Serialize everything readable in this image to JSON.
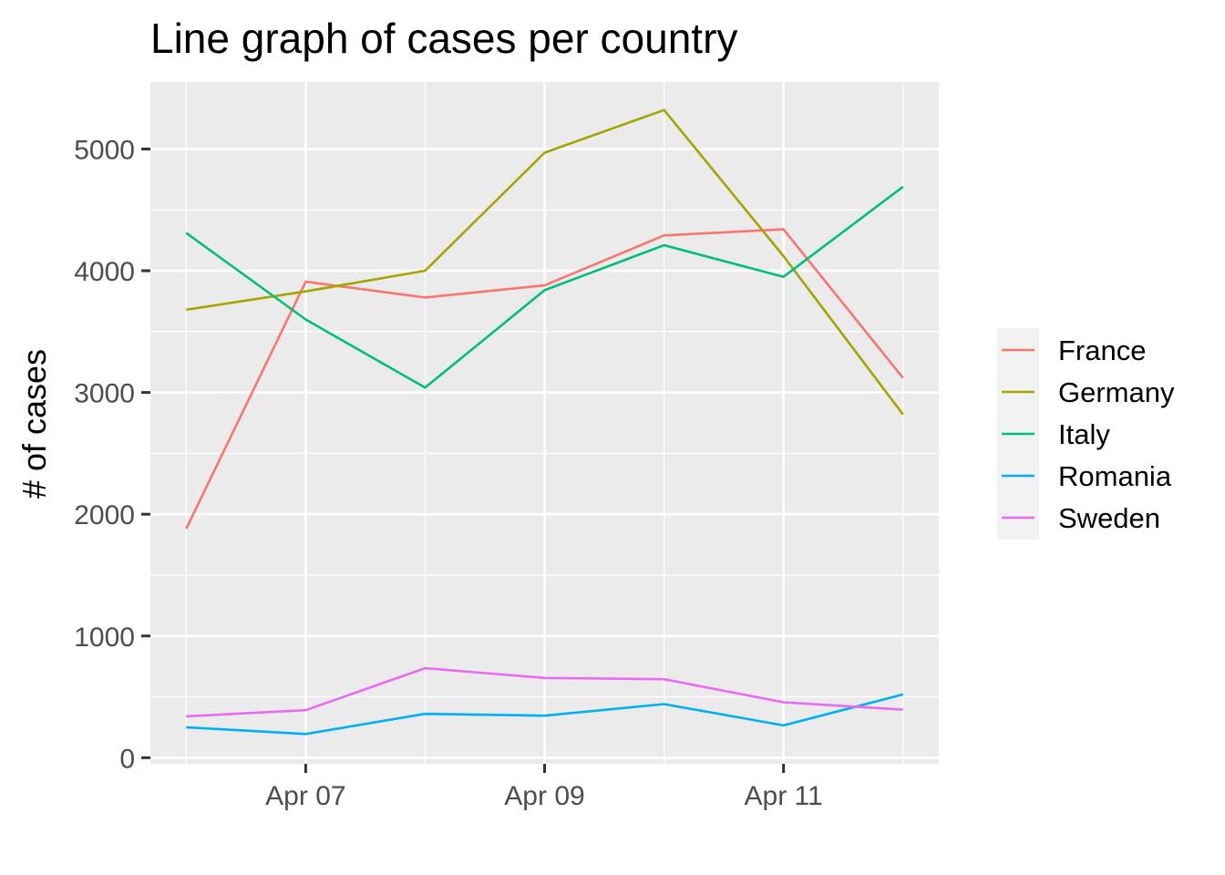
{
  "chart_data": {
    "type": "line",
    "title": "Line graph of cases per country",
    "xlabel": "",
    "ylabel": "# of cases",
    "x": [
      "2020-04-06",
      "2020-04-07",
      "2020-04-08",
      "2020-04-09",
      "2020-04-10",
      "2020-04-11",
      "2020-04-12"
    ],
    "x_ticks": [
      {
        "date": "2020-04-07",
        "label": "Apr 07"
      },
      {
        "date": "2020-04-09",
        "label": "Apr 09"
      },
      {
        "date": "2020-04-11",
        "label": "Apr 11"
      }
    ],
    "y_ticks": [
      0,
      1000,
      2000,
      3000,
      4000,
      5000
    ],
    "ylim": [
      -50,
      5550
    ],
    "grid": true,
    "legend_position": "right",
    "panel_background": "#ebebeb",
    "series": [
      {
        "name": "France",
        "color": "#F8766D",
        "values": [
          1880,
          3910,
          3780,
          3880,
          4290,
          4340,
          3120
        ]
      },
      {
        "name": "Germany",
        "color": "#A3A500",
        "values": [
          3680,
          3830,
          4000,
          4970,
          5320,
          4120,
          2820
        ]
      },
      {
        "name": "Italy",
        "color": "#00BF7D",
        "values": [
          4310,
          3600,
          3040,
          3840,
          4210,
          3950,
          4690
        ]
      },
      {
        "name": "Romania",
        "color": "#00B0F6",
        "values": [
          250,
          195,
          360,
          345,
          440,
          265,
          520
        ]
      },
      {
        "name": "Sweden",
        "color": "#E76BF3",
        "values": [
          340,
          390,
          735,
          655,
          645,
          455,
          395
        ]
      }
    ]
  }
}
